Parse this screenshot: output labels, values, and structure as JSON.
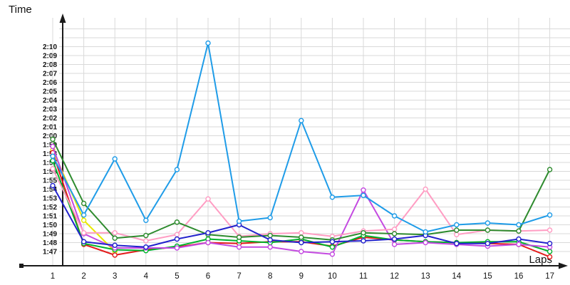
{
  "page": {
    "background": "#ffffff"
  },
  "chart_data": {
    "type": "line",
    "title": "",
    "ylabel": "Time",
    "xlabel": "Laps",
    "x": [
      1,
      2,
      3,
      4,
      5,
      6,
      7,
      8,
      9,
      10,
      11,
      12,
      13,
      14,
      15,
      16,
      17
    ],
    "y_axis": {
      "unit": "minutes:seconds",
      "tick_min_seconds": 107,
      "tick_max_seconds": 130,
      "tick_step_seconds": 1,
      "tick_labels": [
        "1:47",
        "1:48",
        "1:49",
        "1:50",
        "1:51",
        "1:52",
        "1:53",
        "1:54",
        "1:55",
        "1:56",
        "1:57",
        "1:58",
        "1:59",
        "2:00",
        "2:01",
        "2:02",
        "2:03",
        "2:04",
        "2:05",
        "2:06",
        "2:07",
        "2:08",
        "2:09",
        "2:10"
      ]
    },
    "grid": true,
    "legend_position": "none",
    "marker": "open-circle",
    "series": [
      {
        "name": "yellow",
        "color": "#e8e800",
        "values": [
          118.4,
          110.5,
          107.0,
          null,
          null,
          null,
          null,
          null,
          null,
          null,
          null,
          null,
          null,
          null,
          null,
          null,
          null
        ]
      },
      {
        "name": "red",
        "color": "#e31b1b",
        "values": [
          118.1,
          107.8,
          106.6,
          107.2,
          107.5,
          108.0,
          107.9,
          108.1,
          108.1,
          107.6,
          108.6,
          108.3,
          108.1,
          108.0,
          107.9,
          107.8,
          106.4
        ]
      },
      {
        "name": "green",
        "color": "#00b22c",
        "values": [
          117.2,
          107.9,
          107.2,
          107.1,
          107.6,
          108.4,
          108.2,
          108.0,
          108.4,
          107.5,
          108.8,
          108.3,
          108.1,
          108.0,
          108.1,
          108.1,
          107.0
        ]
      },
      {
        "name": "magenta",
        "color": "#c44ae1",
        "values": [
          118.8,
          109.0,
          107.4,
          107.4,
          107.4,
          108.0,
          107.5,
          107.5,
          107.0,
          106.7,
          113.9,
          107.8,
          108.0,
          107.8,
          107.6,
          107.8,
          107.5
        ]
      },
      {
        "name": "pink",
        "color": "#ff9dc3",
        "values": [
          116.3,
          109.1,
          109.1,
          108.2,
          108.9,
          112.9,
          108.7,
          109.0,
          109.1,
          108.7,
          109.3,
          109.5,
          114.0,
          108.9,
          109.4,
          109.3,
          109.4
        ]
      },
      {
        "name": "dark-green",
        "color": "#2e8b2e",
        "values": [
          119.6,
          112.4,
          108.5,
          108.8,
          110.3,
          108.9,
          108.6,
          108.8,
          108.6,
          108.3,
          109.1,
          109.0,
          108.9,
          109.4,
          109.4,
          109.3,
          116.2
        ]
      },
      {
        "name": "blue",
        "color": "#2222cc",
        "values": [
          114.4,
          108.1,
          107.7,
          107.5,
          108.4,
          109.1,
          110.0,
          108.3,
          108.0,
          108.1,
          108.2,
          108.4,
          108.8,
          107.9,
          107.9,
          108.4,
          107.9
        ]
      },
      {
        "name": "sky-blue",
        "color": "#1f9ce8",
        "values": [
          117.7,
          111.1,
          117.4,
          110.5,
          116.2,
          130.4,
          110.4,
          110.8,
          121.7,
          113.1,
          113.3,
          111.0,
          109.2,
          110.0,
          110.2,
          110.0,
          111.1
        ]
      }
    ]
  },
  "colors": {
    "grid": "#d9d9d9",
    "axis": "#1a1a1a",
    "text": "#111111"
  }
}
